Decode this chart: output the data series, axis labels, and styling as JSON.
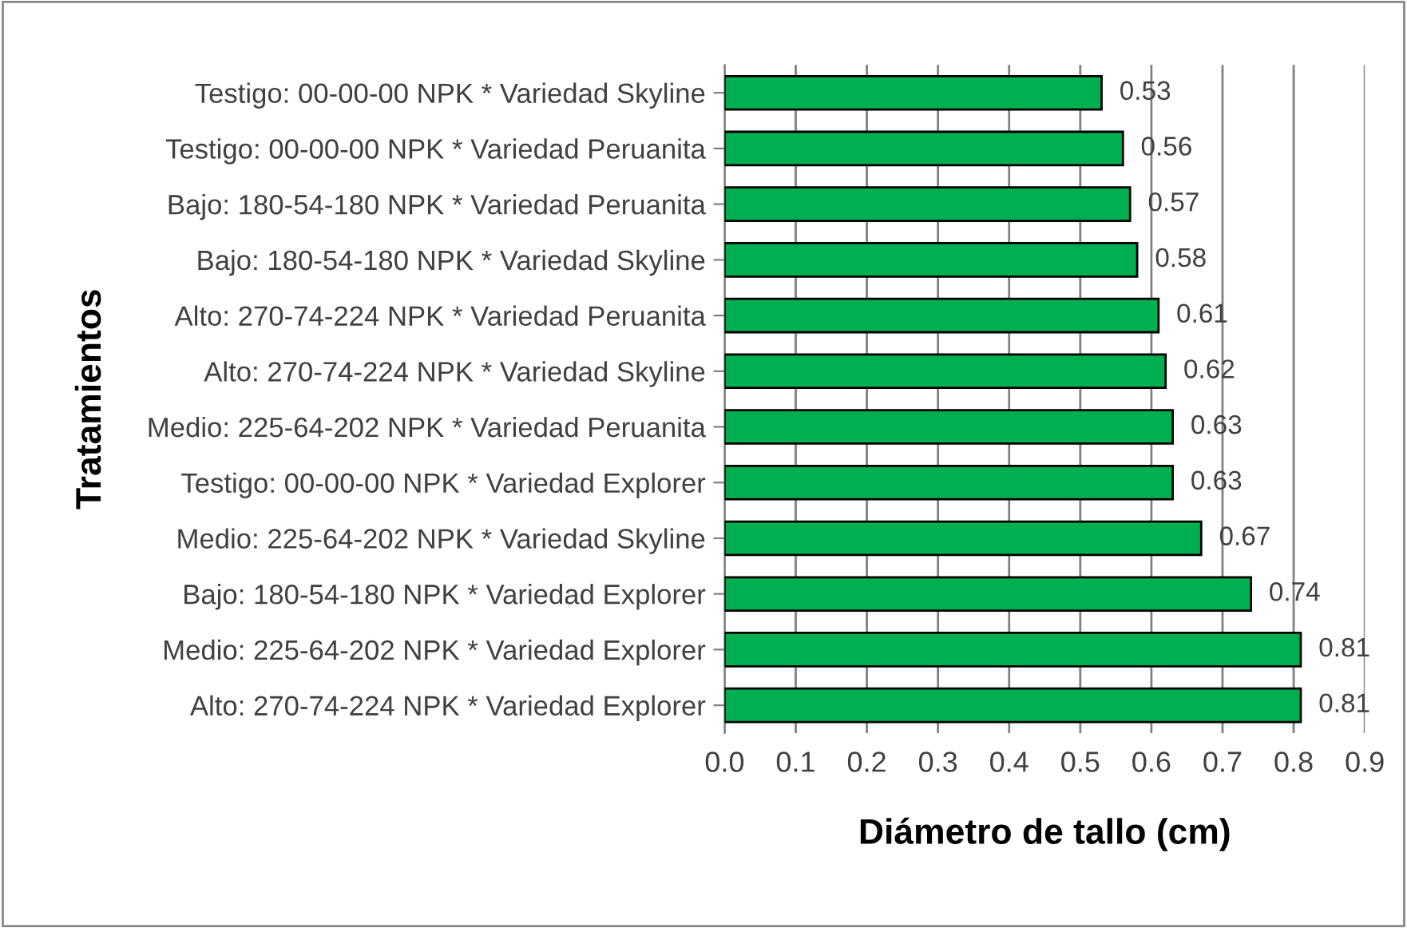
{
  "chart_data": {
    "type": "bar",
    "orientation": "horizontal",
    "xlabel": "Diámetro de tallo (cm)",
    "ylabel": "Tratamientos",
    "categories": [
      "Testigo: 00-00-00 NPK * Variedad Skyline",
      "Testigo: 00-00-00 NPK * Variedad Peruanita",
      "Bajo: 180-54-180 NPK * Variedad Peruanita",
      "Bajo: 180-54-180 NPK * Variedad Skyline",
      "Alto: 270-74-224 NPK * Variedad Peruanita",
      "Alto: 270-74-224 NPK * Variedad Skyline",
      "Medio: 225-64-202 NPK * Variedad Peruanita",
      "Testigo: 00-00-00 NPK * Variedad Explorer",
      "Medio: 225-64-202 NPK * Variedad Skyline",
      "Bajo: 180-54-180 NPK * Variedad Explorer",
      "Medio: 225-64-202 NPK * Variedad Explorer",
      "Alto: 270-74-224 NPK * Variedad Explorer"
    ],
    "values": [
      0.53,
      0.56,
      0.57,
      0.58,
      0.61,
      0.62,
      0.63,
      0.63,
      0.67,
      0.74,
      0.81,
      0.81
    ],
    "color": "#00b050",
    "data_labels": true,
    "grid": "x",
    "xlim": [
      0,
      0.9
    ],
    "xticks": [
      {
        "value": 0,
        "label": "0.0"
      },
      0.1,
      0.2,
      0.3,
      0.4,
      0.5,
      0.6,
      0.7,
      0.8,
      0.9
    ]
  }
}
